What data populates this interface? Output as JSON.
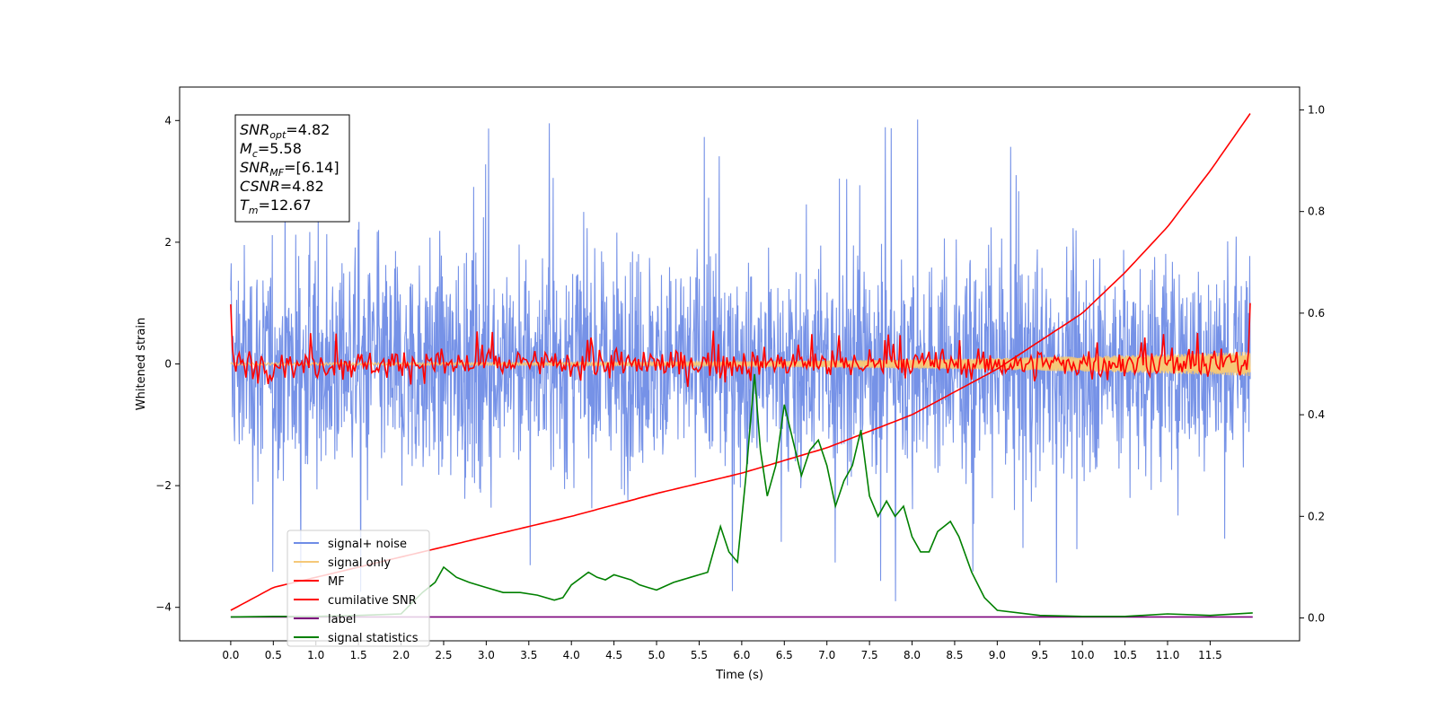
{
  "chart_data": {
    "type": "line",
    "xlabel": "Time (s)",
    "ylabel": "Whitened strain",
    "xlim": [
      -0.6,
      12.55
    ],
    "ylim": [
      -4.55,
      4.55
    ],
    "y2lim": [
      -0.045,
      1.045
    ],
    "grid": false,
    "legend_position": "lower-left",
    "x_ticks": [
      "0.0",
      "0.5",
      "1.0",
      "1.5",
      "2.0",
      "2.5",
      "3.0",
      "3.5",
      "4.0",
      "4.5",
      "5.0",
      "5.5",
      "6.0",
      "6.5",
      "7.0",
      "7.5",
      "8.0",
      "8.5",
      "9.0",
      "9.5",
      "10.0",
      "10.5",
      "11.0",
      "11.5"
    ],
    "y_ticks": [
      "4",
      "2",
      "0",
      "−2",
      "−4"
    ],
    "y2_ticks": [
      "1.0",
      "0.8",
      "0.6",
      "0.4",
      "0.2",
      "0.0"
    ],
    "info_box": [
      {
        "sym": "SNR",
        "sub": "opt",
        "val": "=4.82"
      },
      {
        "sym": "M",
        "sub": "c",
        "val": "=5.58"
      },
      {
        "sym": "SNR",
        "sub": "MF",
        "val": "=[6.14]"
      },
      {
        "sym": "CSNR",
        "sub": "",
        "val": "=4.82"
      },
      {
        "sym": "T",
        "sub": "m",
        "val": "=12.67"
      }
    ],
    "series": [
      {
        "name": "signal+ noise",
        "axis": "left",
        "color": "#6f8ce6",
        "description": "whitened noise, amplitude ~±2.5 with spikes to ±4.1"
      },
      {
        "name": "signal only",
        "axis": "left",
        "color": "#f5c878",
        "description": "chirp, amplitude growing from ~0.02 to ~0.2"
      },
      {
        "name": "MF",
        "axis": "left",
        "color": "#ff0000",
        "description": "matched filter output, noisy around 0, edge spikes to ~1"
      },
      {
        "name": "cumilative SNR",
        "axis": "right",
        "color": "#ff0000",
        "x": [
          0.0,
          0.5,
          1.0,
          2.0,
          3.0,
          4.0,
          5.0,
          6.0,
          7.0,
          8.0,
          9.0,
          10.0,
          10.5,
          11.0,
          11.5,
          12.0
        ],
        "values": [
          0.015,
          0.06,
          0.08,
          0.12,
          0.16,
          0.2,
          0.245,
          0.285,
          0.335,
          0.4,
          0.49,
          0.6,
          0.68,
          0.77,
          0.88,
          1.0
        ]
      },
      {
        "name": "label",
        "axis": "right",
        "color": "#7b007b",
        "x": [
          0.0,
          12.0
        ],
        "values": [
          0.002,
          0.002
        ]
      },
      {
        "name": "signal statistics",
        "axis": "right",
        "color": "#008000",
        "x": [
          0.0,
          0.5,
          1.0,
          1.5,
          2.0,
          2.25,
          2.4,
          2.5,
          2.65,
          2.8,
          3.0,
          3.2,
          3.4,
          3.6,
          3.8,
          3.9,
          4.0,
          4.2,
          4.3,
          4.4,
          4.5,
          4.7,
          4.8,
          4.9,
          5.0,
          5.2,
          5.4,
          5.5,
          5.6,
          5.75,
          5.85,
          5.95,
          6.05,
          6.15,
          6.22,
          6.3,
          6.4,
          6.5,
          6.6,
          6.7,
          6.8,
          6.9,
          7.0,
          7.1,
          7.2,
          7.3,
          7.4,
          7.5,
          7.6,
          7.7,
          7.8,
          7.9,
          8.0,
          8.1,
          8.2,
          8.3,
          8.45,
          8.55,
          8.7,
          8.85,
          9.0,
          9.5,
          10.0,
          10.5,
          11.0,
          11.5,
          12.0
        ],
        "values": [
          0.002,
          0.003,
          0.003,
          0.005,
          0.008,
          0.05,
          0.07,
          0.1,
          0.08,
          0.07,
          0.06,
          0.05,
          0.05,
          0.045,
          0.035,
          0.04,
          0.065,
          0.09,
          0.08,
          0.075,
          0.085,
          0.075,
          0.065,
          0.06,
          0.055,
          0.07,
          0.08,
          0.085,
          0.09,
          0.18,
          0.13,
          0.11,
          0.28,
          0.48,
          0.33,
          0.24,
          0.3,
          0.42,
          0.35,
          0.28,
          0.33,
          0.35,
          0.3,
          0.22,
          0.27,
          0.3,
          0.37,
          0.24,
          0.2,
          0.23,
          0.2,
          0.22,
          0.16,
          0.13,
          0.13,
          0.17,
          0.19,
          0.16,
          0.09,
          0.04,
          0.015,
          0.005,
          0.003,
          0.003,
          0.008,
          0.005,
          0.01
        ]
      }
    ]
  }
}
